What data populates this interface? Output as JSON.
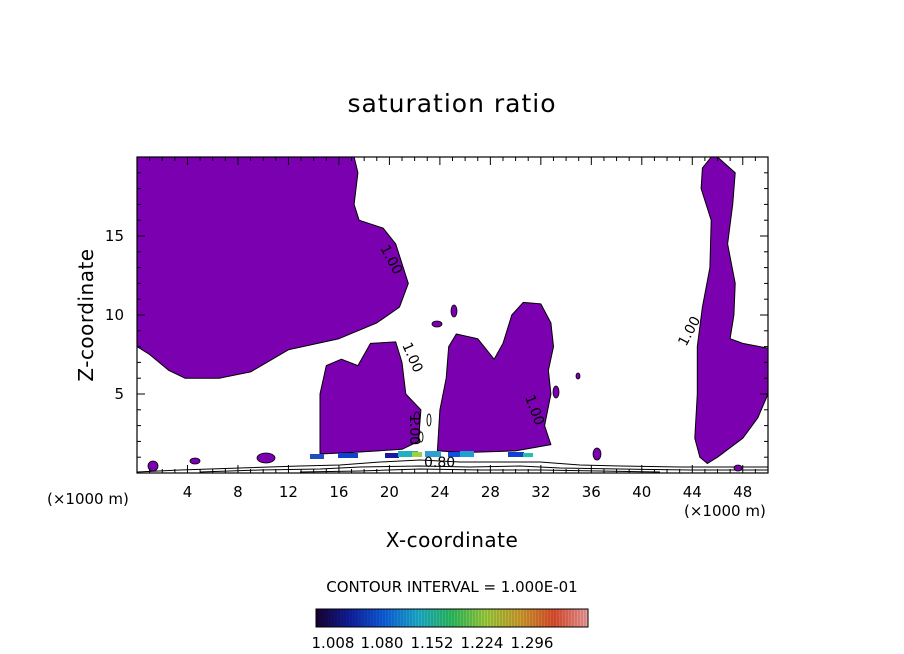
{
  "chart_data": {
    "type": "contour",
    "title": "saturation ratio",
    "xlabel": "X-coordinate",
    "ylabel": "Z-coordinate",
    "x_unit_left": "(×1000 m)",
    "x_unit_right": "(×1000 m)",
    "xlim": [
      0,
      50
    ],
    "ylim": [
      0,
      20
    ],
    "x_ticks": [
      4,
      8,
      12,
      16,
      20,
      24,
      28,
      32,
      36,
      40,
      44,
      48
    ],
    "y_ticks": [
      5,
      10,
      15
    ],
    "x_tick_labels": [
      "4",
      "8",
      "12",
      "16",
      "20",
      "24",
      "28",
      "32",
      "36",
      "40",
      "44",
      "48"
    ],
    "y_tick_labels": [
      "5",
      "10",
      "15"
    ],
    "contour_interval_text": "CONTOUR INTERVAL = 1.000E-01",
    "contour_labels": [
      "1.00",
      "1.00",
      "1.00",
      "1.00",
      "1.00",
      "0.80"
    ],
    "fill_color": "#7a00b0",
    "colorbar": {
      "labels": [
        "1.008",
        "1.080",
        "1.152",
        "1.224",
        "1.296"
      ],
      "stops": [
        "#1a0033",
        "#1020a0",
        "#1060e0",
        "#20b0d0",
        "#30c060",
        "#a0d040",
        "#d0a030",
        "#e05030",
        "#f0a0a0"
      ]
    },
    "regions": [
      {
        "name": "upper-left-region",
        "points": [
          [
            0,
            12.2
          ],
          [
            0,
            20
          ],
          [
            17.2,
            20
          ],
          [
            17.5,
            19
          ],
          [
            17.2,
            17
          ],
          [
            17.6,
            16
          ],
          [
            19.5,
            15.5
          ],
          [
            20.5,
            14.5
          ],
          [
            21.5,
            12
          ],
          [
            20.8,
            10.5
          ],
          [
            19,
            9.5
          ],
          [
            16,
            8.5
          ],
          [
            12,
            7.8
          ],
          [
            9,
            6.4
          ],
          [
            6.5,
            6
          ],
          [
            3.8,
            6
          ],
          [
            2.5,
            6.5
          ],
          [
            1,
            7.5
          ],
          [
            0,
            8
          ]
        ]
      },
      {
        "name": "center-left-lobe",
        "points": [
          [
            14.5,
            1.2
          ],
          [
            14.5,
            5
          ],
          [
            15,
            6.8
          ],
          [
            16.2,
            7.2
          ],
          [
            17.5,
            6.8
          ],
          [
            18.5,
            8.2
          ],
          [
            20.5,
            8.3
          ],
          [
            21,
            7
          ],
          [
            21.3,
            5
          ],
          [
            22.5,
            4
          ],
          [
            22.3,
            2
          ],
          [
            21,
            1.5
          ],
          [
            17,
            1.3
          ]
        ]
      },
      {
        "name": "center-right-lobe",
        "points": [
          [
            23.8,
            1.4
          ],
          [
            24,
            4
          ],
          [
            24.5,
            6
          ],
          [
            24.7,
            8
          ],
          [
            25.3,
            8.8
          ],
          [
            27,
            8.5
          ],
          [
            28.3,
            7.2
          ],
          [
            29,
            8.2
          ],
          [
            29.7,
            10
          ],
          [
            30.6,
            10.8
          ],
          [
            32,
            10.7
          ],
          [
            32.8,
            9.5
          ],
          [
            33,
            8
          ],
          [
            32.6,
            6.5
          ],
          [
            32.8,
            5
          ],
          [
            32.3,
            3
          ],
          [
            32.8,
            1.8
          ],
          [
            30,
            1.4
          ],
          [
            26,
            1.3
          ]
        ]
      },
      {
        "name": "right-region",
        "points": [
          [
            46,
            20
          ],
          [
            47.4,
            19
          ],
          [
            47.2,
            17
          ],
          [
            46.8,
            14.5
          ],
          [
            47.4,
            12
          ],
          [
            47.3,
            10
          ],
          [
            47,
            8.5
          ],
          [
            48,
            8.2
          ],
          [
            50,
            7.9
          ],
          [
            50,
            5
          ],
          [
            49.2,
            3.5
          ],
          [
            48,
            2.2
          ],
          [
            46,
            1
          ],
          [
            45.2,
            0.6
          ],
          [
            44.6,
            1
          ],
          [
            44.2,
            2.2
          ],
          [
            44.4,
            5
          ],
          [
            44.4,
            8
          ],
          [
            44.8,
            10.5
          ],
          [
            45.4,
            13
          ],
          [
            45.5,
            16
          ],
          [
            44.7,
            18
          ],
          [
            44.8,
            19.3
          ],
          [
            45.5,
            20
          ]
        ]
      }
    ]
  }
}
